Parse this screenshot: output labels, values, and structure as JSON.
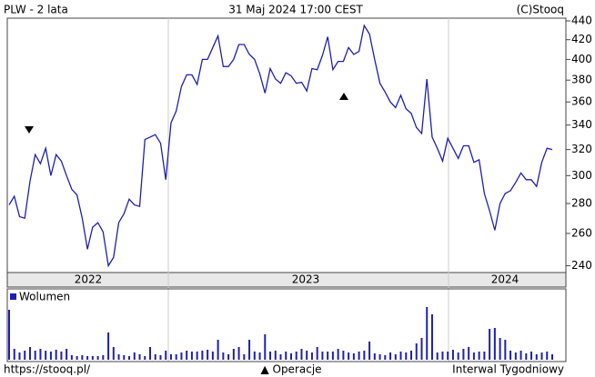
{
  "chart_data": {
    "type": "line",
    "title": "PLW - 2 lata",
    "subtitle": "31 Maj 2024 17:00 CEST",
    "source": "(C)Stooq",
    "url": "https://stooq.pl/",
    "operations_label": "▲ Operacje",
    "interval_label": "Interwal Tygodniowy",
    "year_labels": [
      "2022",
      "2023",
      "2024"
    ],
    "log_scale": true,
    "ylim": [
      236,
      443
    ],
    "yticks": [
      240,
      260,
      280,
      300,
      320,
      340,
      360,
      380,
      400,
      420,
      440
    ],
    "series": [
      {
        "name": "PLW",
        "color": "#1f1fb4",
        "values": [
          279,
          285,
          271,
          270,
          296,
          316,
          309,
          321,
          300,
          316,
          311,
          300,
          290,
          286,
          270,
          250,
          264,
          267,
          261,
          240,
          245,
          267,
          273,
          283,
          279,
          278,
          328,
          330,
          332,
          325,
          297,
          342,
          352,
          374,
          385,
          385,
          376,
          400,
          400,
          412,
          424,
          393,
          393,
          400,
          415,
          415,
          405,
          400,
          386,
          368,
          391,
          381,
          377,
          387,
          384,
          377,
          378,
          370,
          391,
          390,
          404,
          423,
          390,
          398,
          398,
          412,
          405,
          408,
          435,
          426,
          400,
          377,
          369,
          360,
          355,
          366,
          354,
          350,
          338,
          333,
          381,
          330,
          321,
          311,
          329,
          321,
          313,
          323,
          323,
          310,
          312,
          287,
          275,
          262,
          280,
          287,
          289,
          295,
          302,
          297,
          297,
          292,
          310,
          321,
          320
        ]
      }
    ],
    "volume": {
      "name": "Wolumen",
      "color": "#1f1fb4",
      "values": [
        55,
        12,
        8,
        10,
        14,
        10,
        12,
        10,
        9,
        11,
        9,
        12,
        5,
        4,
        5,
        4,
        4,
        4,
        5,
        30,
        14,
        6,
        5,
        4,
        8,
        6,
        4,
        14,
        6,
        5,
        10,
        6,
        6,
        8,
        10,
        9,
        9,
        10,
        11,
        9,
        22,
        8,
        6,
        12,
        14,
        6,
        22,
        9,
        8,
        28,
        9,
        10,
        6,
        9,
        7,
        9,
        12,
        10,
        8,
        14,
        9,
        9,
        9,
        12,
        10,
        8,
        7,
        9,
        10,
        20,
        7,
        6,
        5,
        8,
        6,
        9,
        8,
        10,
        18,
        24,
        58,
        50,
        8,
        9,
        9,
        11,
        8,
        12,
        14,
        8,
        9,
        9,
        34,
        35,
        24,
        22,
        10,
        8,
        10,
        7,
        9,
        6,
        8,
        9,
        6
      ]
    }
  }
}
